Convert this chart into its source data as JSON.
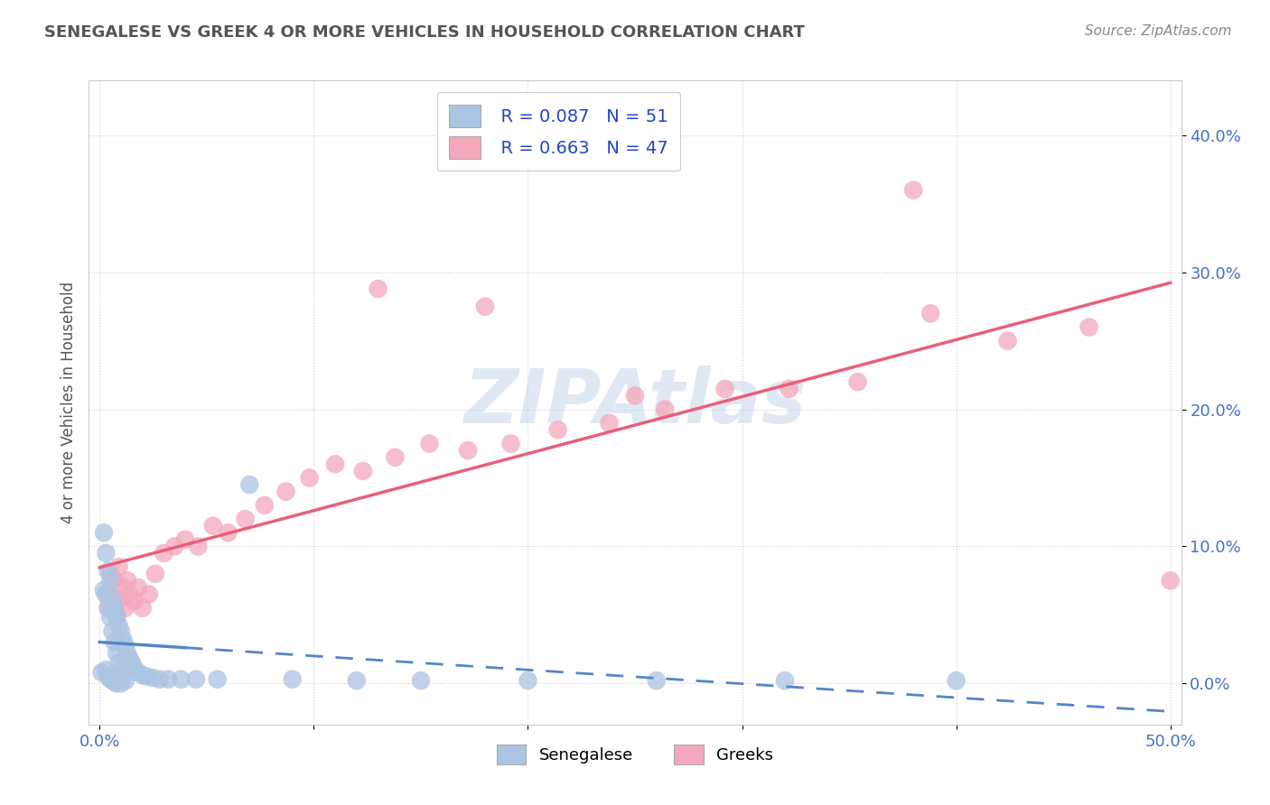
{
  "title": "SENEGALESE VS GREEK 4 OR MORE VEHICLES IN HOUSEHOLD CORRELATION CHART",
  "source": "Source: ZipAtlas.com",
  "ylabel": "4 or more Vehicles in Household",
  "ytick_labels": [
    "0.0%",
    "10.0%",
    "20.0%",
    "30.0%",
    "40.0%"
  ],
  "ytick_values": [
    0.0,
    0.1,
    0.2,
    0.3,
    0.4
  ],
  "xlim": [
    -0.005,
    0.505
  ],
  "ylim": [
    -0.03,
    0.44
  ],
  "legend_r_senegalese": "R = 0.087",
  "legend_n_senegalese": "N = 51",
  "legend_r_greeks": "R = 0.663",
  "legend_n_greeks": "N = 47",
  "watermark": "ZIPAtlas",
  "senegalese_color": "#aac4e2",
  "greeks_color": "#f4a8bb",
  "senegalese_line_color": "#5585c8",
  "greeks_line_color": "#e8607a",
  "background_color": "#ffffff",
  "grid_color": "#cccccc",
  "title_color": "#555555",
  "axis_label_color": "#4472c4",
  "senegalese_x": [
    0.001,
    0.002,
    0.002,
    0.003,
    0.003,
    0.003,
    0.004,
    0.004,
    0.004,
    0.005,
    0.005,
    0.005,
    0.006,
    0.006,
    0.006,
    0.007,
    0.007,
    0.007,
    0.008,
    0.008,
    0.008,
    0.009,
    0.009,
    0.01,
    0.01,
    0.01,
    0.011,
    0.011,
    0.012,
    0.012,
    0.013,
    0.014,
    0.015,
    0.016,
    0.018,
    0.02,
    0.022,
    0.025,
    0.028,
    0.032,
    0.038,
    0.045,
    0.055,
    0.07,
    0.09,
    0.12,
    0.15,
    0.2,
    0.26,
    0.32,
    0.4
  ],
  "senegalese_y": [
    0.008,
    0.11,
    0.068,
    0.095,
    0.065,
    0.01,
    0.082,
    0.055,
    0.005,
    0.075,
    0.048,
    0.003,
    0.062,
    0.038,
    0.002,
    0.055,
    0.03,
    0.001,
    0.048,
    0.022,
    0.0,
    0.042,
    0.015,
    0.038,
    0.01,
    0.0,
    0.032,
    0.005,
    0.028,
    0.002,
    0.022,
    0.018,
    0.015,
    0.012,
    0.008,
    0.006,
    0.005,
    0.004,
    0.003,
    0.003,
    0.003,
    0.003,
    0.003,
    0.145,
    0.003,
    0.002,
    0.002,
    0.002,
    0.002,
    0.002,
    0.002
  ],
  "greeks_x": [
    0.003,
    0.004,
    0.005,
    0.006,
    0.007,
    0.008,
    0.009,
    0.01,
    0.011,
    0.012,
    0.013,
    0.014,
    0.016,
    0.018,
    0.02,
    0.023,
    0.026,
    0.03,
    0.035,
    0.04,
    0.046,
    0.053,
    0.06,
    0.068,
    0.077,
    0.087,
    0.098,
    0.11,
    0.123,
    0.138,
    0.154,
    0.172,
    0.192,
    0.214,
    0.238,
    0.264,
    0.292,
    0.322,
    0.354,
    0.388,
    0.424,
    0.462,
    0.5,
    0.13,
    0.25,
    0.18,
    0.38
  ],
  "greeks_y": [
    0.065,
    0.055,
    0.08,
    0.06,
    0.075,
    0.05,
    0.085,
    0.062,
    0.07,
    0.055,
    0.075,
    0.065,
    0.06,
    0.07,
    0.055,
    0.065,
    0.08,
    0.095,
    0.1,
    0.105,
    0.1,
    0.115,
    0.11,
    0.12,
    0.13,
    0.14,
    0.15,
    0.16,
    0.155,
    0.165,
    0.175,
    0.17,
    0.175,
    0.185,
    0.19,
    0.2,
    0.215,
    0.215,
    0.22,
    0.27,
    0.25,
    0.26,
    0.075,
    0.288,
    0.21,
    0.275,
    0.36
  ]
}
